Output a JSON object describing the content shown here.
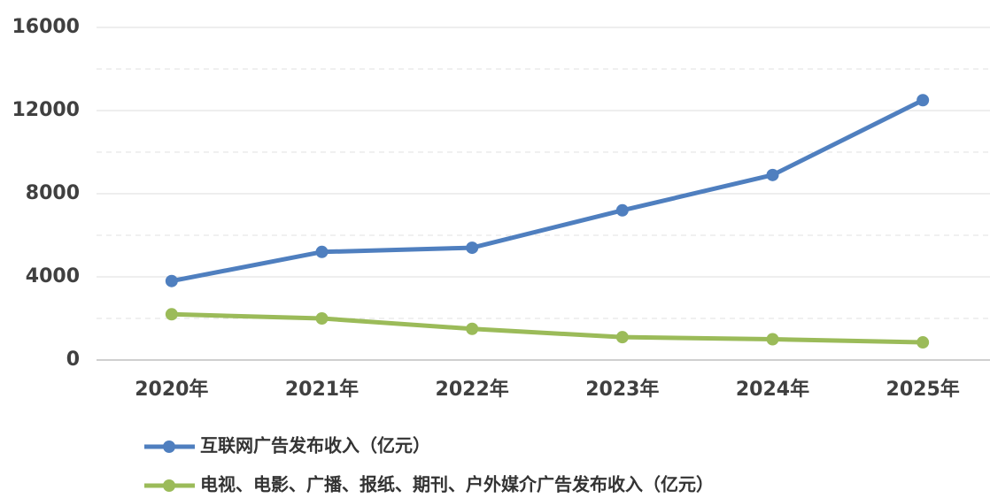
{
  "chart_data": {
    "type": "line",
    "categories": [
      "2020年",
      "2021年",
      "2022年",
      "2023年",
      "2024年",
      "2025年"
    ],
    "series": [
      {
        "name": "互联网广告发布收入（亿元）",
        "color": "#4f7fbf",
        "values": [
          3800,
          5200,
          5400,
          7200,
          8900,
          12500
        ]
      },
      {
        "name": "电视、电影、广播、报纸、期刊、户外媒介广告发布收入（亿元）",
        "color": "#9bbb59",
        "values": [
          2200,
          2000,
          1500,
          1100,
          1000,
          850
        ]
      }
    ],
    "ylim": [
      0,
      16000
    ],
    "yticks": [
      0,
      4000,
      8000,
      12000,
      16000
    ],
    "yminorticks": [
      2000,
      6000,
      10000,
      14000
    ],
    "grid": true,
    "legend": "bottom"
  }
}
